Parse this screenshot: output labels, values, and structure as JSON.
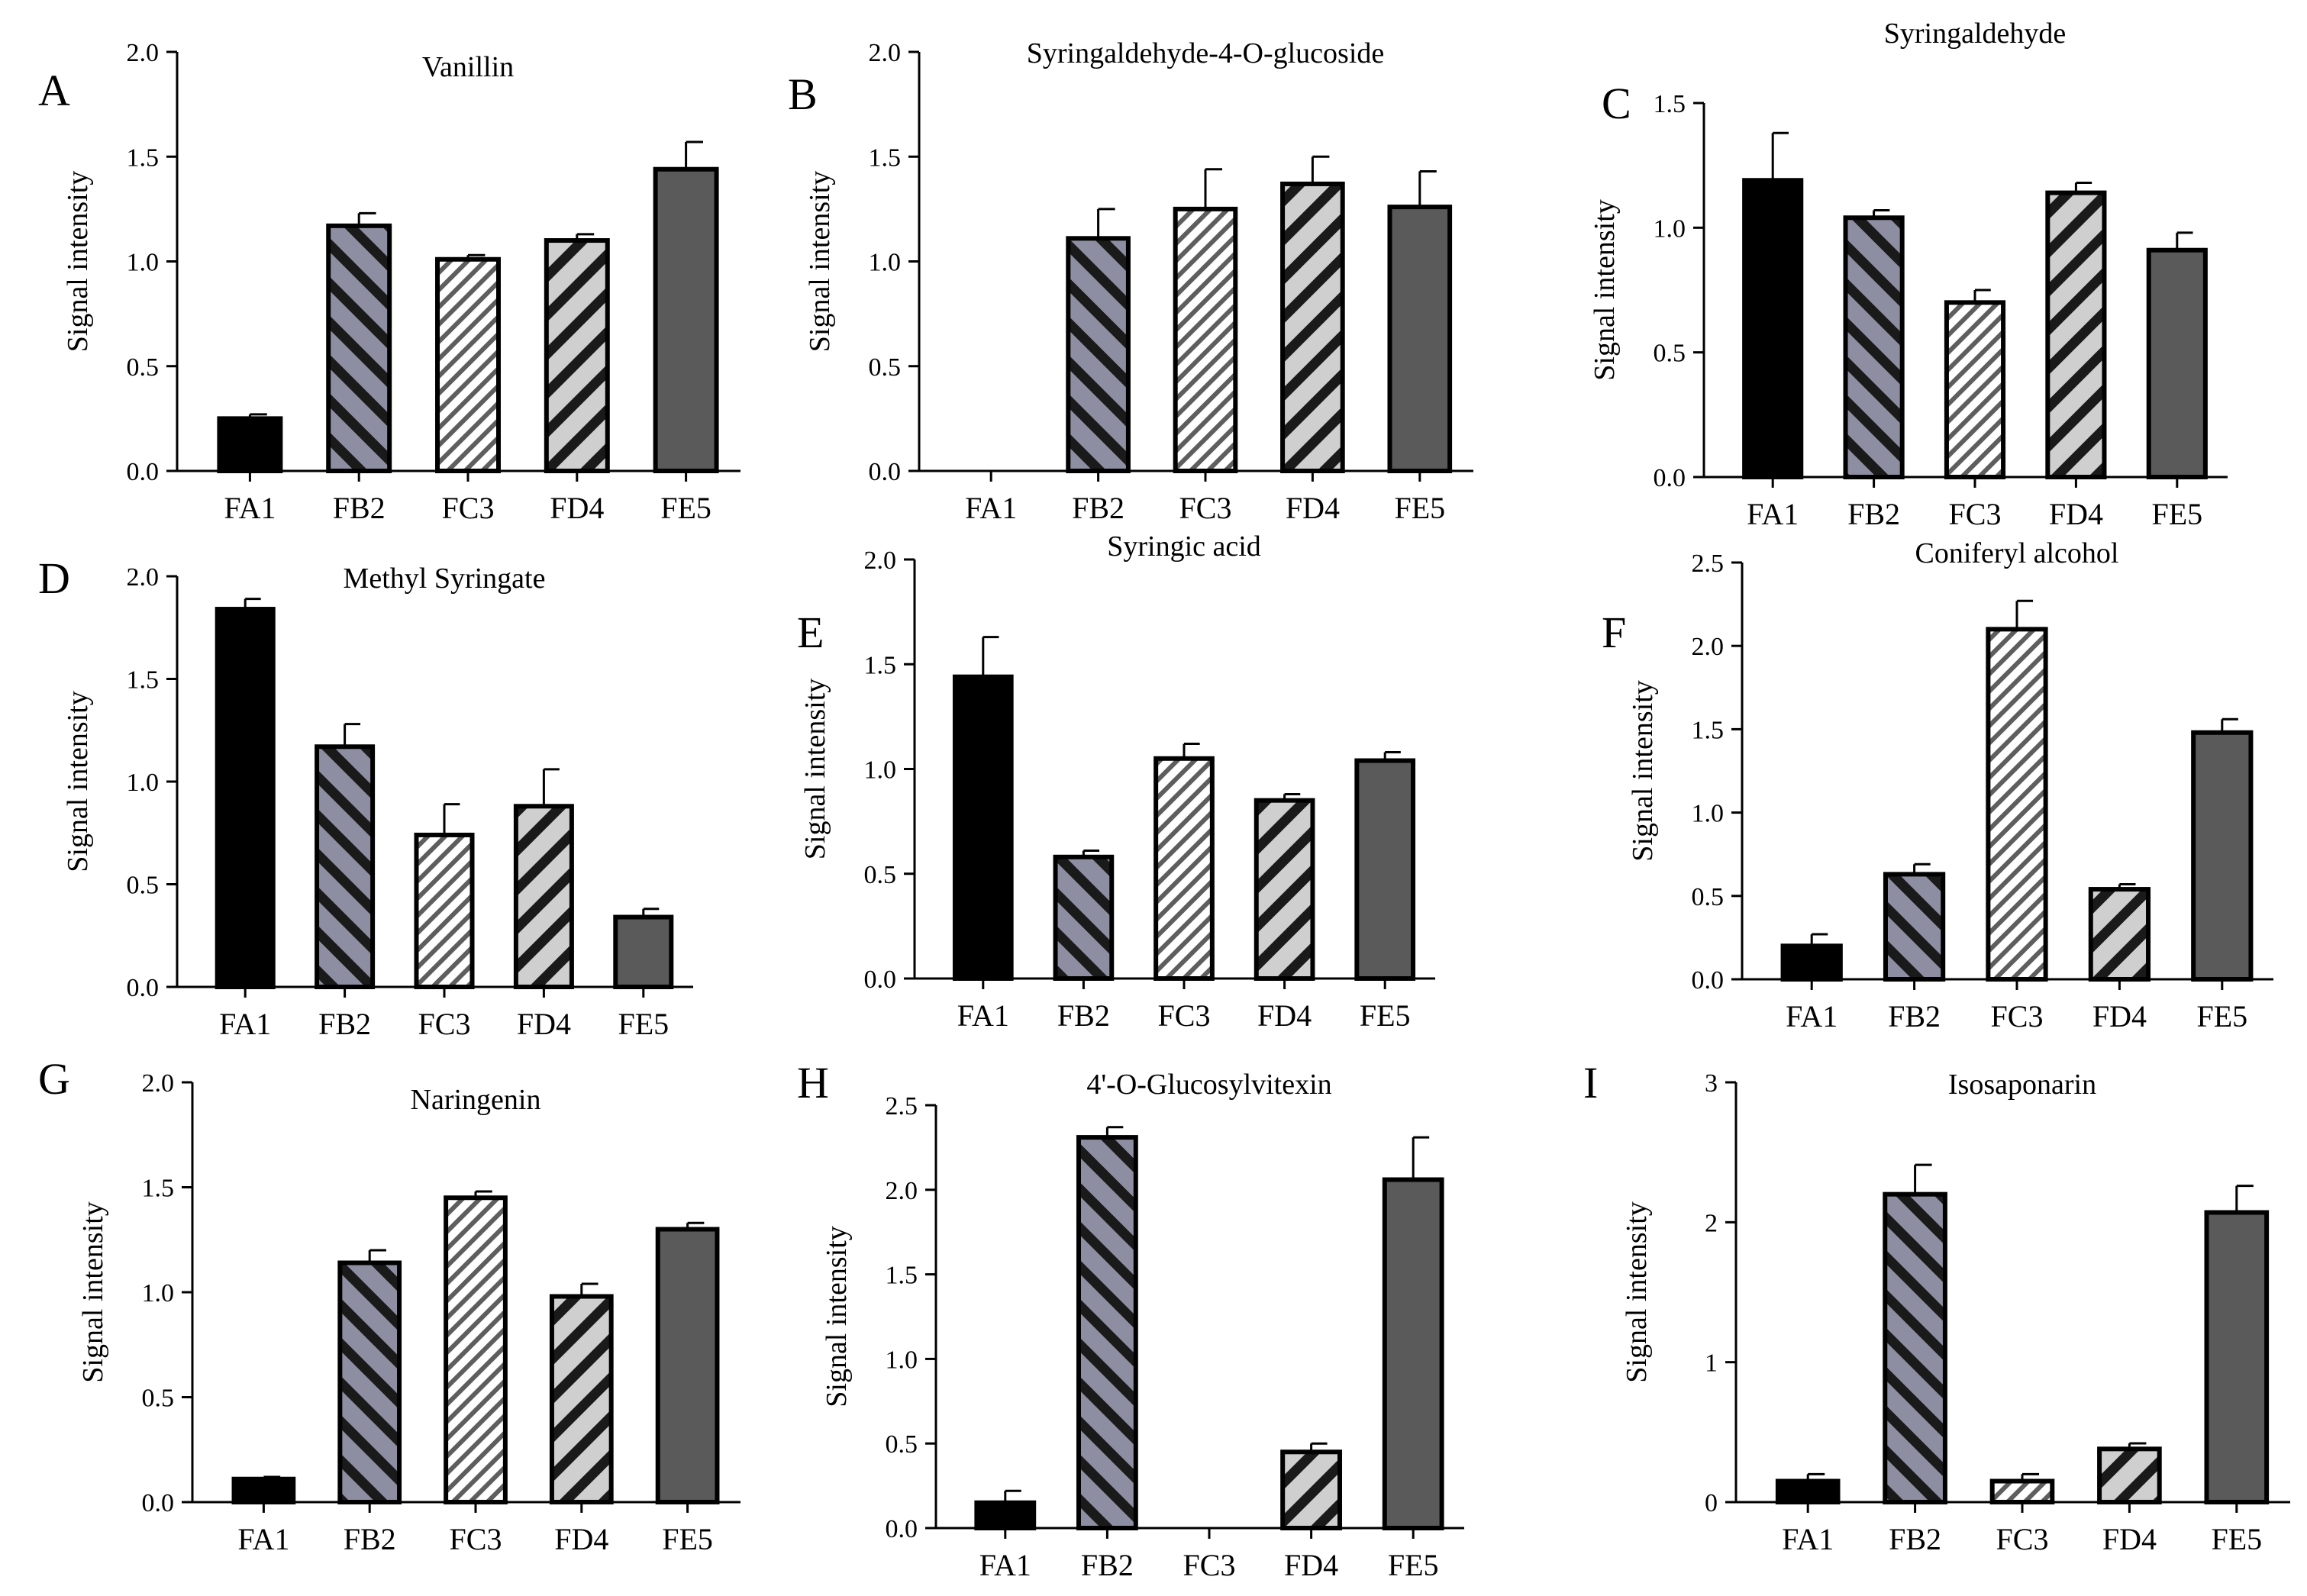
{
  "figure": {
    "ylabel": "Signal intensity",
    "categories": [
      "FA1",
      "FB2",
      "FC3",
      "FD4",
      "FE5"
    ],
    "bar_colors": {
      "FA1": "#000000",
      "FB2": "#8e8ea2",
      "FC3": "#d4d4d4",
      "FD4": "#cfcfcf",
      "FE5": "#5a5a5a"
    },
    "stroke_color": "#000000"
  },
  "chart_data": [
    {
      "panel": "A",
      "type": "bar",
      "title": "Vanillin",
      "xlabel": "",
      "ylabel": "Signal intensity",
      "categories": [
        "FA1",
        "FB2",
        "FC3",
        "FD4",
        "FE5"
      ],
      "values": [
        0.25,
        1.17,
        1.01,
        1.1,
        1.44
      ],
      "errors": [
        0.02,
        0.06,
        0.02,
        0.03,
        0.13
      ],
      "ylim": [
        0,
        2.0
      ],
      "yticks": [
        "0.0",
        "0.5",
        "1.0",
        "1.5",
        "2.0"
      ],
      "grid": false
    },
    {
      "panel": "B",
      "type": "bar",
      "title": "Syringaldehyde-4-O-glucoside",
      "xlabel": "",
      "ylabel": "Signal intensity",
      "categories": [
        "FA1",
        "FB2",
        "FC3",
        "FD4",
        "FE5"
      ],
      "values": [
        0,
        1.11,
        1.25,
        1.37,
        1.26
      ],
      "errors": [
        0,
        0.14,
        0.19,
        0.13,
        0.17
      ],
      "ylim": [
        0,
        2.0
      ],
      "yticks": [
        "0.0",
        "0.5",
        "1.0",
        "1.5",
        "2.0"
      ],
      "grid": false
    },
    {
      "panel": "C",
      "type": "bar",
      "title": "Syringaldehyde",
      "xlabel": "",
      "ylabel": "Signal intensity",
      "categories": [
        "FA1",
        "FB2",
        "FC3",
        "FD4",
        "FE5"
      ],
      "values": [
        1.19,
        1.04,
        0.7,
        1.14,
        0.91
      ],
      "errors": [
        0.19,
        0.03,
        0.05,
        0.04,
        0.07
      ],
      "ylim": [
        0,
        1.5
      ],
      "yticks": [
        "0.0",
        "0.5",
        "1.0",
        "1.5"
      ],
      "grid": false
    },
    {
      "panel": "D",
      "type": "bar",
      "title": "Methyl Syringate",
      "xlabel": "",
      "ylabel": "Signal intensity",
      "categories": [
        "FA1",
        "FB2",
        "FC3",
        "FD4",
        "FE5"
      ],
      "values": [
        1.84,
        1.17,
        0.74,
        0.88,
        0.34
      ],
      "errors": [
        0.05,
        0.11,
        0.15,
        0.18,
        0.04
      ],
      "ylim": [
        0,
        2.0
      ],
      "yticks": [
        "0.0",
        "0.5",
        "1.0",
        "1.5",
        "2.0"
      ],
      "grid": false
    },
    {
      "panel": "E",
      "type": "bar",
      "title": "Syringic acid",
      "xlabel": "",
      "ylabel": "Signal intensity",
      "categories": [
        "FA1",
        "FB2",
        "FC3",
        "FD4",
        "FE5"
      ],
      "values": [
        1.44,
        0.58,
        1.05,
        0.85,
        1.04
      ],
      "errors": [
        0.19,
        0.03,
        0.07,
        0.03,
        0.04
      ],
      "ylim": [
        0,
        2.0
      ],
      "yticks": [
        "0.0",
        "0.5",
        "1.0",
        "1.5",
        "2.0"
      ],
      "grid": false
    },
    {
      "panel": "F",
      "type": "bar",
      "title": "Coniferyl alcohol",
      "xlabel": "",
      "ylabel": "Signal intensity",
      "categories": [
        "FA1",
        "FB2",
        "FC3",
        "FD4",
        "FE5"
      ],
      "values": [
        0.2,
        0.63,
        2.1,
        0.54,
        1.48
      ],
      "errors": [
        0.07,
        0.06,
        0.17,
        0.03,
        0.08
      ],
      "ylim": [
        0,
        2.5
      ],
      "yticks": [
        "0.0",
        "0.5",
        "1.0",
        "1.5",
        "2.0",
        "2.5"
      ],
      "grid": false
    },
    {
      "panel": "G",
      "type": "bar",
      "title": "Naringenin",
      "xlabel": "",
      "ylabel": "Signal intensity",
      "categories": [
        "FA1",
        "FB2",
        "FC3",
        "FD4",
        "FE5"
      ],
      "values": [
        0.11,
        1.14,
        1.45,
        0.98,
        1.3
      ],
      "errors": [
        0.01,
        0.06,
        0.03,
        0.06,
        0.03
      ],
      "ylim": [
        0,
        2.0
      ],
      "yticks": [
        "0.0",
        "0.5",
        "1.0",
        "1.5",
        "2.0"
      ],
      "grid": false
    },
    {
      "panel": "H",
      "type": "bar",
      "title": "4'-O-Glucosylvitexin",
      "xlabel": "",
      "ylabel": "Signal intensity",
      "categories": [
        "FA1",
        "FB2",
        "FC3",
        "FD4",
        "FE5"
      ],
      "values": [
        0.15,
        2.31,
        0,
        0.45,
        2.06
      ],
      "errors": [
        0.07,
        0.06,
        0,
        0.05,
        0.25
      ],
      "ylim": [
        0,
        2.5
      ],
      "yticks": [
        "0.0",
        "0.5",
        "1.0",
        "1.5",
        "2.0",
        "2.5"
      ],
      "grid": false
    },
    {
      "panel": "I",
      "type": "bar",
      "title": "Isosaponarin",
      "xlabel": "",
      "ylabel": "Signal intensity",
      "categories": [
        "FA1",
        "FB2",
        "FC3",
        "FD4",
        "FE5"
      ],
      "values": [
        0.15,
        2.2,
        0.15,
        0.38,
        2.07
      ],
      "errors": [
        0.05,
        0.21,
        0.05,
        0.04,
        0.19
      ],
      "ylim": [
        0,
        3
      ],
      "yticks": [
        "0",
        "1",
        "2",
        "3"
      ],
      "grid": false
    }
  ]
}
